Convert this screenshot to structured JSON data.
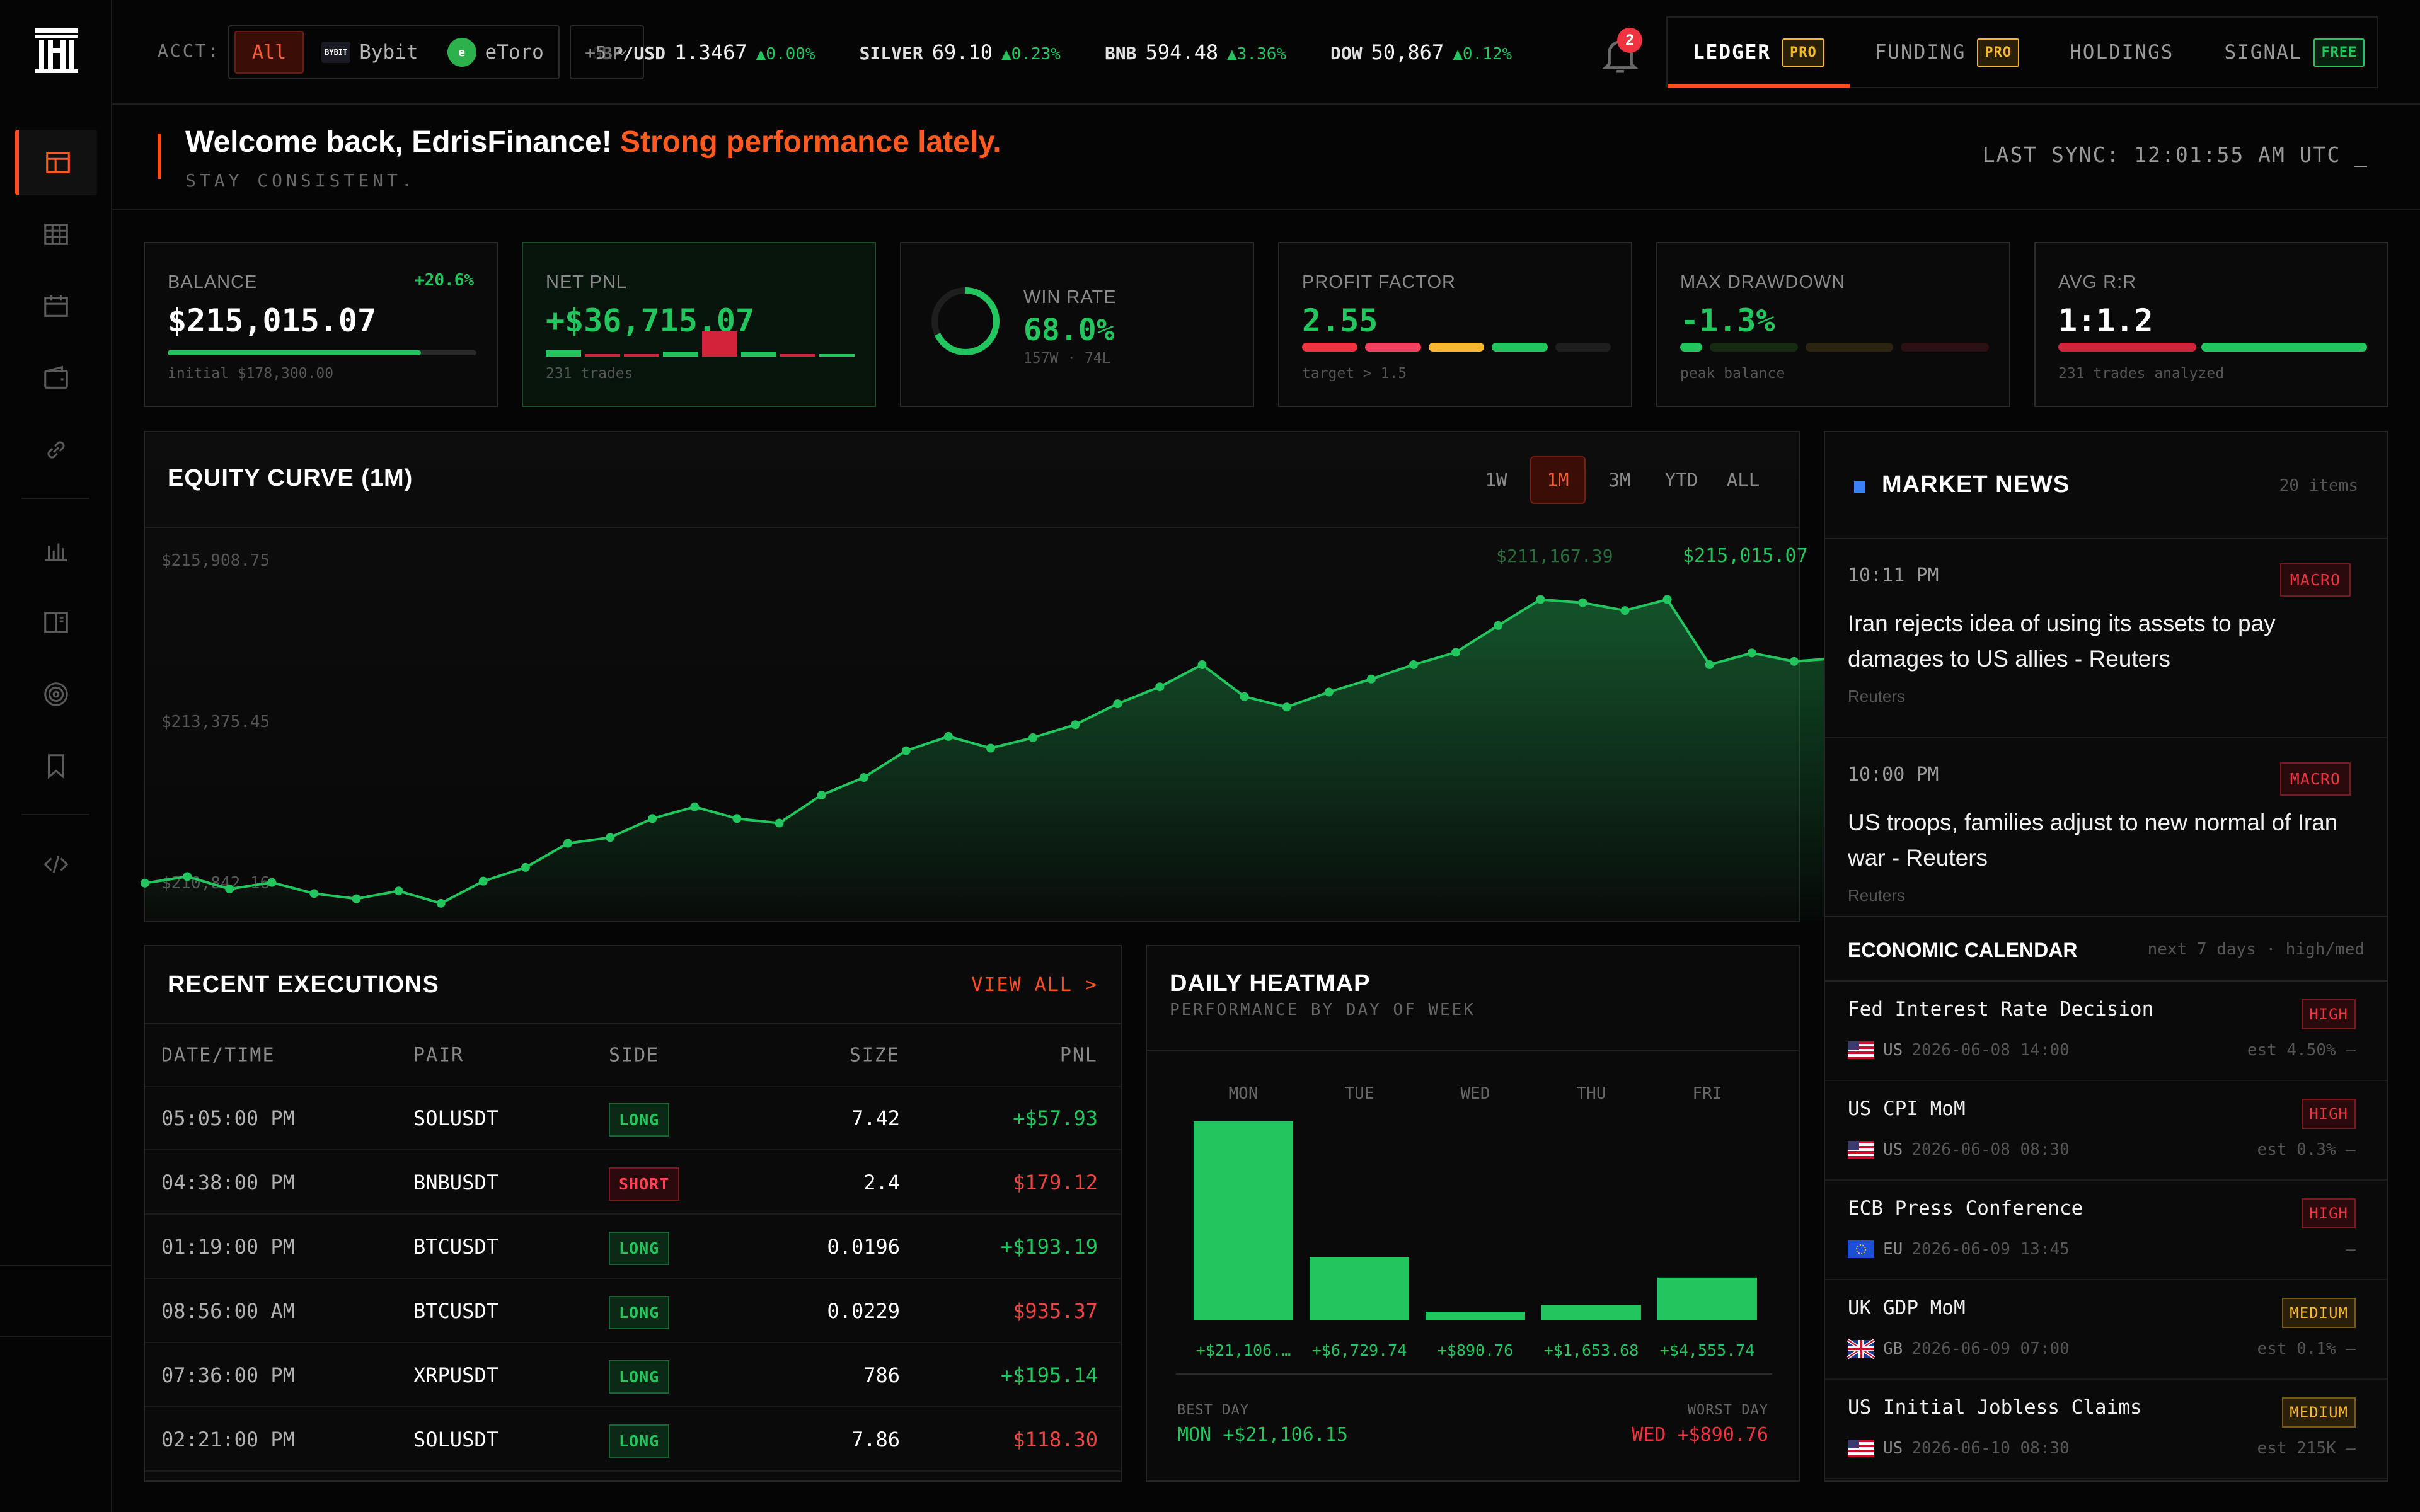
{
  "sidebar": {
    "items": [
      "layout",
      "table",
      "calendar",
      "wallet",
      "link",
      "bar-chart",
      "book",
      "radar",
      "bookmark",
      "code"
    ]
  },
  "topbar": {
    "acct_label": "ACCT:",
    "accounts": [
      {
        "label": "All",
        "active": true
      },
      {
        "label": "Bybit",
        "logo": "BYBIT"
      },
      {
        "label": "eToro",
        "logo": "e"
      }
    ],
    "more_label": "+5",
    "ticker": [
      {
        "sym": "GBP/USD",
        "price": "1.3467",
        "chg": "▲0.00%"
      },
      {
        "sym": "SILVER",
        "price": "69.10",
        "chg": "▲0.23%"
      },
      {
        "sym": "BNB",
        "price": "594.48",
        "chg": "▲3.36%"
      },
      {
        "sym": "DOW",
        "price": "50,867",
        "chg": "▲0.12%"
      }
    ],
    "notifications": "2",
    "tabs": [
      {
        "label": "LEDGER",
        "badge": "PRO",
        "badge_type": "pro",
        "active": true
      },
      {
        "label": "FUNDING",
        "badge": "PRO",
        "badge_type": "pro"
      },
      {
        "label": "HOLDINGS"
      },
      {
        "label": "SIGNAL",
        "badge": "FREE",
        "badge_type": "free"
      }
    ]
  },
  "welcome": {
    "greeting": "Welcome back, EdrisFinance!",
    "highlight": "Strong performance lately.",
    "sub": "STAY CONSISTENT.",
    "last_sync": "LAST SYNC: 12:01:55 AM UTC _"
  },
  "stats": {
    "balance": {
      "label": "BALANCE",
      "value": "$215,015.07",
      "change": "+20.6%",
      "sub": "initial $178,300.00",
      "progress": 0.82
    },
    "net_pnl": {
      "label": "NET PNL",
      "value": "+$36,715.07",
      "sub": "231 trades"
    },
    "win_rate": {
      "label": "WIN RATE",
      "value": "68.0%",
      "sub": "157W · 74L",
      "rate": 0.68
    },
    "profit_factor": {
      "label": "PROFIT FACTOR",
      "value": "2.55",
      "sub": "target > 1.5"
    },
    "max_drawdown": {
      "label": "MAX DRAWDOWN",
      "value": "-1.3%",
      "sub": "peak balance"
    },
    "avg_rr": {
      "label": "AVG R:R",
      "value": "1:1.2",
      "sub": "231 trades analyzed"
    }
  },
  "equity": {
    "title": "EQUITY CURVE (1M)",
    "ranges": [
      "1W",
      "1M",
      "3M",
      "YTD",
      "ALL"
    ],
    "active_range": "1M",
    "last_label": "$215,015.07",
    "hover_label": "$211,167.39",
    "chart_data": {
      "type": "area",
      "ytick_labels": [
        "$215,908.75",
        "$213,375.45",
        "$210,842.16"
      ],
      "ylim": [
        210600,
        216300
      ],
      "values": [
        210950,
        211050,
        210860,
        210960,
        210790,
        210710,
        210830,
        210640,
        210980,
        211190,
        211560,
        211650,
        211940,
        212120,
        211940,
        211870,
        212300,
        212570,
        212980,
        213200,
        213020,
        213180,
        213380,
        213700,
        213960,
        214300,
        213810,
        213650,
        213880,
        214080,
        214300,
        214490,
        214900,
        215300,
        215250,
        215130,
        215300,
        214300,
        214480,
        214350,
        214400
      ]
    }
  },
  "news": {
    "title": "MARKET NEWS",
    "count": "20 items",
    "items": [
      {
        "time": "10:11 PM",
        "tag": "MACRO",
        "text": "Iran rejects idea of using its assets to pay damages to US allies - Reuters",
        "source": "Reuters"
      },
      {
        "time": "10:00 PM",
        "tag": "MACRO",
        "text": "US troops, families adjust to new normal of Iran war - Reuters",
        "source": "Reuters"
      }
    ]
  },
  "executions": {
    "title": "RECENT EXECUTIONS",
    "view_all": "VIEW ALL >",
    "columns": [
      "DATE/TIME",
      "PAIR",
      "SIDE",
      "SIZE",
      "PNL"
    ],
    "rows": [
      {
        "time": "05:05:00 PM",
        "pair": "SOLUSDT",
        "side": "LONG",
        "size": "7.42",
        "pnl": "+$57.93",
        "pos": true
      },
      {
        "time": "04:38:00 PM",
        "pair": "BNBUSDT",
        "side": "SHORT",
        "size": "2.4",
        "pnl": "$179.12",
        "pos": false
      },
      {
        "time": "01:19:00 PM",
        "pair": "BTCUSDT",
        "side": "LONG",
        "size": "0.0196",
        "pnl": "+$193.19",
        "pos": true
      },
      {
        "time": "08:56:00 AM",
        "pair": "BTCUSDT",
        "side": "LONG",
        "size": "0.0229",
        "pnl": "$935.37",
        "pos": false
      },
      {
        "time": "07:36:00 PM",
        "pair": "XRPUSDT",
        "side": "LONG",
        "size": "786",
        "pnl": "+$195.14",
        "pos": true
      },
      {
        "time": "02:21:00 PM",
        "pair": "SOLUSDT",
        "side": "LONG",
        "size": "7.86",
        "pnl": "$118.30",
        "pos": false
      }
    ]
  },
  "heatmap": {
    "title": "DAILY HEATMAP",
    "sub": "PERFORMANCE BY DAY OF WEEK",
    "best_label": "BEST DAY",
    "best_value": "MON +$21,106.15",
    "worst_label": "WORST DAY",
    "worst_value": "WED +$890.76",
    "chart_data": {
      "type": "bar",
      "categories": [
        "MON",
        "TUE",
        "WED",
        "THU",
        "FRI"
      ],
      "values": [
        21106.15,
        6729.74,
        890.76,
        1653.68,
        4555.74
      ],
      "labels": [
        "+$21,106.…",
        "+$6,729.74",
        "+$890.76",
        "+$1,653.68",
        "+$4,555.74"
      ]
    }
  },
  "calendar": {
    "title": "ECONOMIC CALENDAR",
    "sub": "next 7 days · high/med",
    "events": [
      {
        "name": "Fed Interest Rate Decision",
        "impact": "HIGH",
        "cc": "US",
        "date": "2026-06-08 14:00",
        "est": "est 4.50% —"
      },
      {
        "name": "US CPI MoM",
        "impact": "HIGH",
        "cc": "US",
        "date": "2026-06-08 08:30",
        "est": "est 0.3% —"
      },
      {
        "name": "ECB Press Conference",
        "impact": "HIGH",
        "cc": "EU",
        "date": "2026-06-09 13:45",
        "est": "—"
      },
      {
        "name": "UK GDP MoM",
        "impact": "MEDIUM",
        "cc": "GB",
        "date": "2026-06-09 07:00",
        "est": "est 0.1% —"
      },
      {
        "name": "US Initial Jobless Claims",
        "impact": "MEDIUM",
        "cc": "US",
        "date": "2026-06-10 08:30",
        "est": "est 215K —"
      }
    ]
  },
  "colors": {
    "accent": "#ff4d1f",
    "green": "#22c55e",
    "red": "#ef3340",
    "gold": "#f5b82e",
    "blue": "#3b82f6"
  }
}
